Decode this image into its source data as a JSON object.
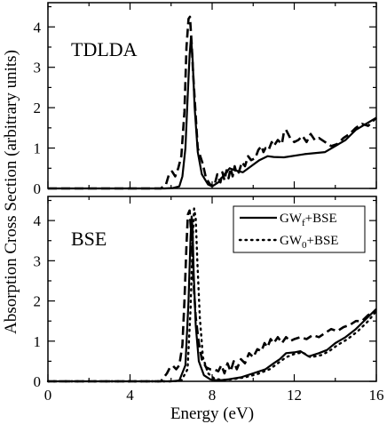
{
  "chart_data": [
    {
      "type": "line",
      "panel_label": "TDLDA",
      "xlim": [
        0,
        16
      ],
      "ylim": [
        0,
        4.6
      ],
      "xticks": [
        0,
        4,
        8,
        12,
        16
      ],
      "yticks": [
        0,
        1,
        2,
        3,
        4
      ],
      "ytick_labels": [
        "0",
        "1",
        "2",
        "3",
        "4"
      ],
      "legend": false,
      "grid": false,
      "series": [
        {
          "style": "solid",
          "x": [
            0,
            5.7,
            6.1,
            6.4,
            6.55,
            6.7,
            6.8,
            6.9,
            6.97,
            7.05,
            7.15,
            7.3,
            7.5,
            7.8,
            8.0,
            8.3,
            8.6,
            8.85,
            9.1,
            9.5,
            9.9,
            10.3,
            10.7,
            11.0,
            11.5,
            12.5,
            13.5,
            14.0,
            14.5,
            15.0,
            15.5,
            16.0
          ],
          "y": [
            0.0,
            0.0,
            0.01,
            0.05,
            0.3,
            1.0,
            2.2,
            3.3,
            3.75,
            3.2,
            2.0,
            0.9,
            0.35,
            0.1,
            0.05,
            0.15,
            0.35,
            0.5,
            0.45,
            0.4,
            0.55,
            0.7,
            0.8,
            0.78,
            0.77,
            0.85,
            0.9,
            1.05,
            1.2,
            1.45,
            1.6,
            1.75
          ]
        },
        {
          "style": "dashed",
          "x": [
            0,
            5.5,
            5.75,
            5.9,
            6.05,
            6.2,
            6.35,
            6.5,
            6.65,
            6.75,
            6.85,
            6.92,
            7.0,
            7.08,
            7.2,
            7.3,
            7.42,
            7.55,
            7.7,
            7.9,
            8.1,
            8.25,
            8.4,
            8.5,
            8.6,
            8.7,
            8.8,
            8.9,
            9.0,
            9.1,
            9.2,
            9.3,
            9.45,
            9.6,
            9.75,
            9.9,
            10.1,
            10.25,
            10.4,
            10.5,
            10.6,
            10.75,
            10.9,
            11.0,
            11.2,
            11.4,
            11.5,
            11.6,
            11.8,
            12.0,
            12.2,
            12.4,
            12.6,
            12.8,
            13.0,
            13.2,
            13.5,
            13.8,
            14.1,
            14.4,
            14.7,
            15.0,
            15.3,
            15.6,
            16.0
          ],
          "y": [
            0.0,
            0.0,
            0.1,
            0.35,
            0.42,
            0.3,
            0.5,
            0.8,
            1.9,
            3.5,
            4.2,
            4.25,
            3.6,
            2.8,
            1.8,
            1.0,
            0.8,
            0.6,
            0.25,
            0.1,
            0.05,
            0.35,
            0.15,
            0.4,
            0.2,
            0.45,
            0.25,
            0.5,
            0.3,
            0.55,
            0.35,
            0.4,
            0.65,
            0.55,
            0.8,
            0.7,
            0.75,
            0.95,
            1.05,
            0.9,
            1.0,
            0.95,
            1.15,
            1.05,
            1.2,
            1.1,
            1.4,
            1.45,
            1.25,
            1.15,
            1.2,
            1.3,
            1.15,
            1.35,
            1.2,
            1.25,
            1.15,
            1.05,
            1.1,
            1.25,
            1.35,
            1.5,
            1.6,
            1.55,
            1.75
          ]
        }
      ]
    },
    {
      "type": "line",
      "panel_label": "BSE",
      "xlim": [
        0,
        16
      ],
      "ylim": [
        0,
        4.6
      ],
      "xticks": [
        0,
        4,
        8,
        12,
        16
      ],
      "yticks": [
        0,
        1,
        2,
        3,
        4
      ],
      "ytick_labels": [
        "0",
        "1",
        "2",
        "3",
        "4"
      ],
      "xtick_labels": [
        "0",
        "4",
        "8",
        "12",
        "16"
      ],
      "xlabel": "Energy (eV)",
      "legend": true,
      "legend_position": "top-right",
      "grid": false,
      "series": [
        {
          "name": "GWf+BSE",
          "style": "solid",
          "x": [
            0,
            6.0,
            6.4,
            6.7,
            6.85,
            6.95,
            7.0,
            7.05,
            7.1,
            7.2,
            7.35,
            7.6,
            7.9,
            8.3,
            8.8,
            9.4,
            10.0,
            10.6,
            11.0,
            11.3,
            11.6,
            12.0,
            12.3,
            12.7,
            13.2,
            13.6,
            14.0,
            14.5,
            15.0,
            15.5,
            16.0
          ],
          "y": [
            0.0,
            0.0,
            0.02,
            0.4,
            2.0,
            3.6,
            4.1,
            3.8,
            2.7,
            1.4,
            0.5,
            0.15,
            0.05,
            0.02,
            0.05,
            0.1,
            0.2,
            0.3,
            0.45,
            0.55,
            0.7,
            0.72,
            0.75,
            0.62,
            0.7,
            0.78,
            0.95,
            1.1,
            1.3,
            1.55,
            1.8
          ]
        },
        {
          "name": "GW0+BSE",
          "style": "dotted",
          "x": [
            0,
            6.1,
            6.5,
            6.8,
            6.95,
            7.05,
            7.12,
            7.2,
            7.28,
            7.4,
            7.55,
            7.8,
            8.1,
            8.5,
            9.0,
            9.6,
            10.2,
            10.8,
            11.2,
            11.6,
            12.0,
            12.4,
            12.8,
            13.3,
            13.7,
            14.1,
            14.6,
            15.1,
            15.6,
            16.0
          ],
          "y": [
            0.0,
            0.0,
            0.02,
            0.3,
            1.8,
            3.5,
            4.3,
            4.05,
            3.0,
            1.6,
            0.6,
            0.2,
            0.07,
            0.03,
            0.05,
            0.1,
            0.18,
            0.3,
            0.45,
            0.6,
            0.68,
            0.72,
            0.6,
            0.65,
            0.75,
            0.9,
            1.05,
            1.25,
            1.5,
            1.75
          ]
        },
        {
          "style": "dashed",
          "x": [
            0,
            5.5,
            5.8,
            5.95,
            6.1,
            6.25,
            6.4,
            6.55,
            6.65,
            6.75,
            6.82,
            6.9,
            6.98,
            7.08,
            7.2,
            7.35,
            7.5,
            7.7,
            7.9,
            8.1,
            8.3,
            8.45,
            8.6,
            8.75,
            8.9,
            9.05,
            9.2,
            9.4,
            9.6,
            9.8,
            10.0,
            10.2,
            10.4,
            10.55,
            10.7,
            10.85,
            11.0,
            11.2,
            11.4,
            11.6,
            11.8,
            12.0,
            12.3,
            12.6,
            12.9,
            13.2,
            13.5,
            13.8,
            14.1,
            14.4,
            14.7,
            15.0,
            15.3,
            15.6,
            16.0
          ],
          "y": [
            0.0,
            0.0,
            0.2,
            0.35,
            0.38,
            0.3,
            0.4,
            0.9,
            2.0,
            3.4,
            4.15,
            4.25,
            3.7,
            2.6,
            1.6,
            0.95,
            0.55,
            0.35,
            0.3,
            0.3,
            0.25,
            0.4,
            0.2,
            0.45,
            0.25,
            0.5,
            0.3,
            0.55,
            0.45,
            0.7,
            0.6,
            0.8,
            0.75,
            0.95,
            0.85,
            1.05,
            0.95,
            1.1,
            0.95,
            1.1,
            1.0,
            1.05,
            1.1,
            1.05,
            1.15,
            1.1,
            1.2,
            1.3,
            1.25,
            1.35,
            1.4,
            1.5,
            1.5,
            1.65,
            1.75
          ]
        }
      ]
    }
  ],
  "figure": {
    "ylabel": "Absorption Cross Section (arbitrary units)"
  },
  "legend": {
    "entries": [
      {
        "base": "GW",
        "sub": "f",
        "suffix": "+BSE",
        "style": "solid"
      },
      {
        "base": "GW",
        "sub": "0",
        "suffix": "+BSE",
        "style": "dotted"
      }
    ]
  }
}
